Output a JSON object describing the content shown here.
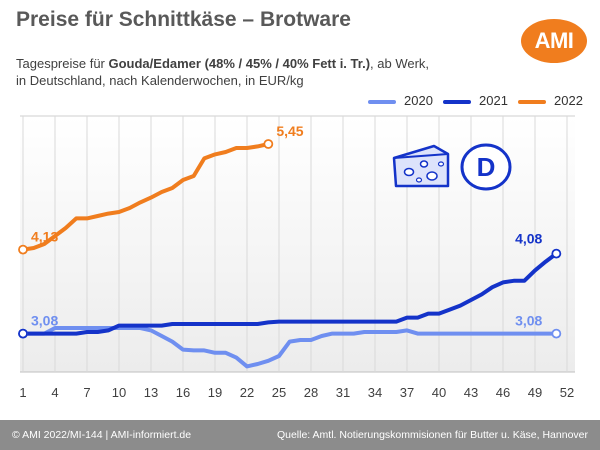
{
  "branding": {
    "logo_text": "AMI"
  },
  "footer": {
    "left": "© AMI 2022/MI-144 | AMI-informiert.de",
    "right": "Quelle: Amtl. Notierungskommisionen für Butter u. Käse, Hannover"
  },
  "chart_data": {
    "type": "line",
    "title": "Preise für Schnittkäse – Brotware",
    "subtitle": {
      "prefix": "Tagespreise für ",
      "product": "Gouda/Edamer (48% / 45% / 40% Fett i. Tr.)",
      "suffix": ", ab Werk,",
      "line2": "in Deutschland, nach Kalenderwochen, in EUR/kg"
    },
    "country_badge": "D",
    "xlabel": "",
    "ylabel": "",
    "x_ticks": [
      1,
      4,
      7,
      10,
      13,
      16,
      19,
      22,
      25,
      28,
      31,
      34,
      37,
      40,
      43,
      46,
      49,
      52
    ],
    "xlim": [
      1,
      52
    ],
    "ylim": [
      2.6,
      5.8
    ],
    "grid": {
      "vertical": true,
      "horizontal": false
    },
    "legend_position": "top-right",
    "colors": {
      "2020": "#6f8ff0",
      "2021": "#1433c9",
      "2022": "#f07d1e"
    },
    "series": [
      {
        "name": "2020",
        "color": "#6f8ff0",
        "x": [
          1,
          2,
          3,
          4,
          5,
          6,
          7,
          8,
          9,
          10,
          11,
          12,
          13,
          14,
          15,
          16,
          17,
          18,
          19,
          20,
          21,
          22,
          23,
          24,
          25,
          26,
          27,
          28,
          29,
          30,
          31,
          32,
          33,
          34,
          35,
          36,
          37,
          38,
          39,
          40,
          41,
          42,
          43,
          44,
          45,
          46,
          47,
          48,
          49,
          50,
          51
        ],
        "values": [
          3.08,
          3.08,
          3.08,
          3.15,
          3.15,
          3.15,
          3.15,
          3.15,
          3.15,
          3.15,
          3.15,
          3.15,
          3.12,
          3.05,
          2.98,
          2.88,
          2.87,
          2.87,
          2.84,
          2.84,
          2.78,
          2.67,
          2.7,
          2.74,
          2.8,
          2.98,
          3.0,
          3.0,
          3.05,
          3.08,
          3.08,
          3.08,
          3.1,
          3.1,
          3.1,
          3.1,
          3.12,
          3.08,
          3.08,
          3.08,
          3.08,
          3.08,
          3.08,
          3.08,
          3.08,
          3.08,
          3.08,
          3.08,
          3.08,
          3.08,
          3.08
        ],
        "end_label": "3,08",
        "start_label": "3,08"
      },
      {
        "name": "2021",
        "color": "#1433c9",
        "x": [
          1,
          2,
          3,
          4,
          5,
          6,
          7,
          8,
          9,
          10,
          11,
          12,
          13,
          14,
          15,
          16,
          17,
          18,
          19,
          20,
          21,
          22,
          23,
          24,
          25,
          26,
          27,
          28,
          29,
          30,
          31,
          32,
          33,
          34,
          35,
          36,
          37,
          38,
          39,
          40,
          41,
          42,
          43,
          44,
          45,
          46,
          47,
          48,
          49,
          50,
          51
        ],
        "values": [
          3.08,
          3.08,
          3.08,
          3.08,
          3.08,
          3.08,
          3.1,
          3.1,
          3.12,
          3.18,
          3.18,
          3.18,
          3.18,
          3.18,
          3.2,
          3.2,
          3.2,
          3.2,
          3.2,
          3.2,
          3.2,
          3.2,
          3.2,
          3.22,
          3.23,
          3.23,
          3.23,
          3.23,
          3.23,
          3.23,
          3.23,
          3.23,
          3.23,
          3.23,
          3.23,
          3.23,
          3.28,
          3.28,
          3.33,
          3.33,
          3.38,
          3.43,
          3.5,
          3.57,
          3.66,
          3.72,
          3.74,
          3.74,
          3.87,
          3.98,
          4.08
        ],
        "end_label": "4,08"
      },
      {
        "name": "2022",
        "color": "#f07d1e",
        "x": [
          1,
          2,
          3,
          4,
          5,
          6,
          7,
          8,
          9,
          10,
          11,
          12,
          13,
          14,
          15,
          16,
          17,
          18,
          19,
          20,
          21,
          22,
          23,
          24
        ],
        "values": [
          4.13,
          4.15,
          4.2,
          4.3,
          4.4,
          4.52,
          4.52,
          4.55,
          4.58,
          4.6,
          4.65,
          4.72,
          4.78,
          4.85,
          4.9,
          5.0,
          5.05,
          5.27,
          5.32,
          5.35,
          5.4,
          5.4,
          5.42,
          5.45
        ],
        "start_label": "4,13",
        "end_label": "5,45"
      }
    ]
  }
}
